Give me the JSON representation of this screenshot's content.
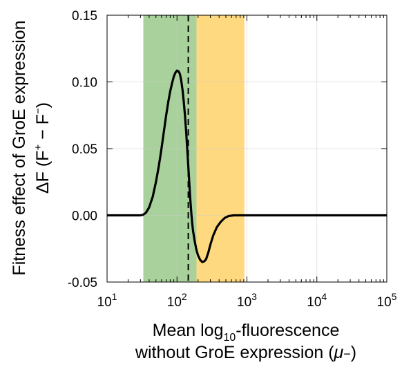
{
  "chart_data": {
    "type": "line",
    "title": "",
    "xlabel": {
      "line1_prefix": "Mean log",
      "line1_sub": "10",
      "line1_suffix": "-fluorescence",
      "line2_prefix": "without GroE expression (",
      "line2_mu": "μ",
      "line2_minus": "−",
      "line2_suffix": ")"
    },
    "ylabel": {
      "line1": "Fitness effect of GroE expression",
      "line2_prefix": "ΔF (F",
      "line2_sup_plus": "+",
      "line2_mid": " − F",
      "line2_sup_minus": "−",
      "line2_suffix": ")"
    },
    "x_scale": "log",
    "xlim": [
      10,
      100000
    ],
    "ylim": [
      -0.05,
      0.15
    ],
    "x_ticks": [
      {
        "value": 10,
        "base": "10",
        "exp": "1"
      },
      {
        "value": 100,
        "base": "10",
        "exp": "2"
      },
      {
        "value": 1000,
        "base": "10",
        "exp": "3"
      },
      {
        "value": 10000,
        "base": "10",
        "exp": "4"
      },
      {
        "value": 100000,
        "base": "10",
        "exp": "5"
      }
    ],
    "y_ticks": [
      {
        "value": -0.05,
        "label": "-0.05"
      },
      {
        "value": 0.0,
        "label": "0.00"
      },
      {
        "value": 0.05,
        "label": "0.05"
      },
      {
        "value": 0.1,
        "label": "0.10"
      },
      {
        "value": 0.15,
        "label": "0.15"
      }
    ],
    "grid": true,
    "regions": [
      {
        "name": "green-region",
        "x_from": 33,
        "x_to": 190,
        "color": "#a8d19b"
      },
      {
        "name": "orange-region",
        "x_from": 190,
        "x_to": 920,
        "color": "#ffd97f"
      }
    ],
    "vline": {
      "x": 145,
      "style": "dashed",
      "color": "#000000"
    },
    "series": [
      {
        "color": "#000000",
        "points": [
          [
            10,
            0.0
          ],
          [
            20,
            0.0
          ],
          [
            30,
            0.0
          ],
          [
            33,
            0.0005
          ],
          [
            36,
            0.002
          ],
          [
            40,
            0.006
          ],
          [
            45,
            0.014
          ],
          [
            50,
            0.025
          ],
          [
            55,
            0.037
          ],
          [
            60,
            0.05
          ],
          [
            65,
            0.063
          ],
          [
            70,
            0.075
          ],
          [
            75,
            0.085
          ],
          [
            80,
            0.093
          ],
          [
            85,
            0.099
          ],
          [
            90,
            0.104
          ],
          [
            95,
            0.107
          ],
          [
            100,
            0.1085
          ],
          [
            105,
            0.108
          ],
          [
            110,
            0.106
          ],
          [
            115,
            0.101
          ],
          [
            120,
            0.094
          ],
          [
            125,
            0.085
          ],
          [
            130,
            0.075
          ],
          [
            135,
            0.063
          ],
          [
            140,
            0.05
          ],
          [
            145,
            0.037
          ],
          [
            150,
            0.024
          ],
          [
            155,
            0.012
          ],
          [
            160,
            0.002
          ],
          [
            165,
            -0.006
          ],
          [
            170,
            -0.012
          ],
          [
            180,
            -0.02
          ],
          [
            190,
            -0.026
          ],
          [
            200,
            -0.03
          ],
          [
            215,
            -0.0335
          ],
          [
            230,
            -0.035
          ],
          [
            245,
            -0.0345
          ],
          [
            260,
            -0.033
          ],
          [
            280,
            -0.028
          ],
          [
            300,
            -0.022
          ],
          [
            330,
            -0.015
          ],
          [
            370,
            -0.009
          ],
          [
            420,
            -0.005
          ],
          [
            480,
            -0.002
          ],
          [
            550,
            -0.0005
          ],
          [
            650,
            0.0
          ],
          [
            1000,
            0.0
          ],
          [
            10000,
            0.0
          ],
          [
            100000,
            0.0
          ]
        ]
      }
    ]
  }
}
